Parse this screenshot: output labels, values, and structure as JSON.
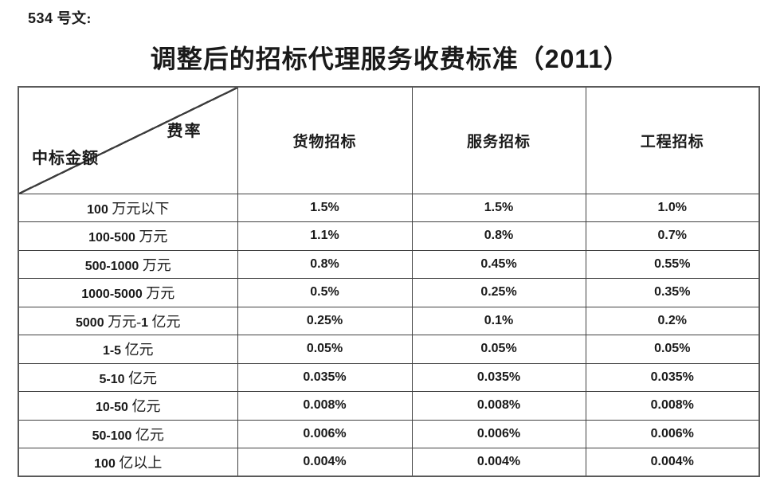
{
  "document": {
    "doc_label": "534 号文:",
    "title": "调整后的招标代理服务收费标准（2011）"
  },
  "table": {
    "corner": {
      "top_right": "费率",
      "bottom_left": "中标金额"
    },
    "columns": [
      "货物招标",
      "服务招标",
      "工程招标"
    ],
    "rows": [
      {
        "amount": "100 万元以下",
        "rates": [
          "1.5%",
          "1.5%",
          "1.0%"
        ]
      },
      {
        "amount": "100-500 万元",
        "rates": [
          "1.1%",
          "0.8%",
          "0.7%"
        ]
      },
      {
        "amount": "500-1000 万元",
        "rates": [
          "0.8%",
          "0.45%",
          "0.55%"
        ]
      },
      {
        "amount": "1000-5000 万元",
        "rates": [
          "0.5%",
          "0.25%",
          "0.35%"
        ]
      },
      {
        "amount": "5000 万元-1 亿元",
        "rates": [
          "0.25%",
          "0.1%",
          "0.2%"
        ]
      },
      {
        "amount": "1-5 亿元",
        "rates": [
          "0.05%",
          "0.05%",
          "0.05%"
        ]
      },
      {
        "amount": "5-10 亿元",
        "rates": [
          "0.035%",
          "0.035%",
          "0.035%"
        ]
      },
      {
        "amount": "10-50 亿元",
        "rates": [
          "0.008%",
          "0.008%",
          "0.008%"
        ]
      },
      {
        "amount": "50-100 亿元",
        "rates": [
          "0.006%",
          "0.006%",
          "0.006%"
        ]
      },
      {
        "amount": "100 亿以上",
        "rates": [
          "0.004%",
          "0.004%",
          "0.004%"
        ]
      }
    ]
  },
  "colors": {
    "background": "#ffffff",
    "text": "#1a1a1a",
    "border": "#414141"
  }
}
